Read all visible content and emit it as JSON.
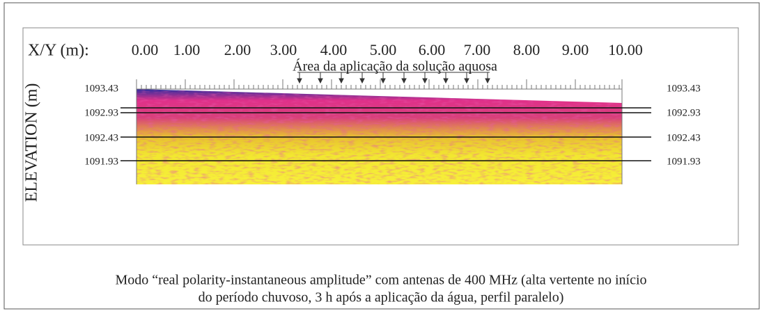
{
  "figure": {
    "x_axis": {
      "label": "X/Y (m):",
      "ticks": [
        "0.00",
        "1.00",
        "2.00",
        "3.00",
        "4.00",
        "5.00",
        "6.00",
        "7.00",
        "8.00",
        "9.00",
        "10.00"
      ]
    },
    "annotation": "Área da aplicação da solução aquosa",
    "y_axis_label": "ELEVATION (m)",
    "elevations_left": [
      "1093.43",
      "1092.93",
      "1092.43",
      "1091.93"
    ],
    "elevations_right": [
      "1093.43",
      "1092.93",
      "1092.43",
      "1091.93"
    ]
  },
  "caption": [
    "Modo “real polarity-instantaneous amplitude” com antenas de 400 MHz (alta vertente no início",
    "do período chuvoso, 3 h após a aplicação da água, perfil paralelo)"
  ]
}
